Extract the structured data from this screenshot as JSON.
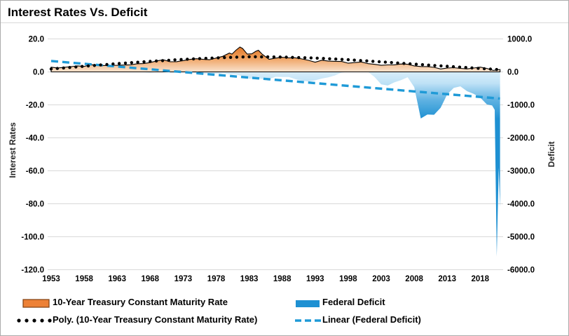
{
  "title": "Interest Rates Vs. Deficit",
  "left_axis": {
    "title": "Interest Rates",
    "ticks": [
      "20.0",
      "0.0",
      "-20.0",
      "-40.0",
      "-60.0",
      "-80.0",
      "-100.0",
      "-120.0"
    ],
    "tick_values": [
      20,
      0,
      -20,
      -40,
      -60,
      -80,
      -100,
      -120
    ]
  },
  "right_axis": {
    "title": "Deficit",
    "ticks": [
      "1000.0",
      "0.0",
      "-1000.0",
      "-2000.0",
      "-3000.0",
      "-4000.0",
      "-5000.0",
      "-6000.0"
    ],
    "tick_values": [
      1000,
      0,
      -1000,
      -2000,
      -3000,
      -4000,
      -5000,
      -6000
    ]
  },
  "legend": {
    "items": [
      {
        "label": "10-Year Treasury Constant Maturity Rate",
        "swatch": "area-orange"
      },
      {
        "label": "Federal Deficit",
        "swatch": "area-blue"
      },
      {
        "label": "Poly. (10-Year Treasury Constant Maturity Rate)",
        "swatch": "dotted-black"
      },
      {
        "label": "Linear (Federal Deficit)",
        "swatch": "dashed-blue"
      }
    ]
  },
  "colors": {
    "orange_top": "#dc6e1e",
    "orange_mid": "#ee9b55",
    "orange_pale": "#f9e3cf",
    "orange_solid": "#ed7d31",
    "orange_border": "#7f3f10",
    "blue_light": "#d7edfa",
    "blue_mid": "#5fb2e2",
    "blue_deep": "#1e90d2",
    "trend_blue": "#1f9ad7",
    "gridline": "#d9d9d9",
    "text": "#000000"
  },
  "chart_data": {
    "type": "combo-area-with-trendlines",
    "x_ticks": [
      1953,
      1958,
      1963,
      1968,
      1973,
      1978,
      1983,
      1988,
      1993,
      1998,
      2003,
      2008,
      2013,
      2018
    ],
    "x_range": [
      1953,
      2021
    ],
    "left_axis": {
      "label": "Interest Rates",
      "range": [
        -120,
        20
      ],
      "grid": true
    },
    "right_axis": {
      "label": "Deficit",
      "range": [
        -6000,
        1000
      ]
    },
    "legend_position": "bottom",
    "series": [
      {
        "name": "10-Year Treasury Constant Maturity Rate",
        "type": "area",
        "axis": "left",
        "color": "#ed7d31",
        "points": [
          [
            1953,
            2.85
          ],
          [
            1954,
            2.4
          ],
          [
            1955,
            2.82
          ],
          [
            1956,
            3.18
          ],
          [
            1957,
            3.65
          ],
          [
            1958,
            3.32
          ],
          [
            1959,
            4.33
          ],
          [
            1960,
            4.12
          ],
          [
            1961,
            3.88
          ],
          [
            1962,
            3.95
          ],
          [
            1963,
            4.0
          ],
          [
            1964,
            4.19
          ],
          [
            1965,
            4.28
          ],
          [
            1966,
            4.93
          ],
          [
            1967,
            5.07
          ],
          [
            1968,
            5.64
          ],
          [
            1969,
            6.67
          ],
          [
            1970,
            7.35
          ],
          [
            1971,
            6.16
          ],
          [
            1972,
            6.21
          ],
          [
            1973,
            6.85
          ],
          [
            1974,
            7.56
          ],
          [
            1975,
            7.99
          ],
          [
            1976,
            7.61
          ],
          [
            1977,
            7.42
          ],
          [
            1978,
            8.41
          ],
          [
            1979,
            9.43
          ],
          [
            1980,
            11.43
          ],
          [
            1980.4,
            10.8
          ],
          [
            1981,
            13.2
          ],
          [
            1981.6,
            15.1
          ],
          [
            1982,
            14.2
          ],
          [
            1982.7,
            10.8
          ],
          [
            1983.4,
            11.0
          ],
          [
            1984,
            12.5
          ],
          [
            1984.4,
            13.1
          ],
          [
            1985,
            10.62
          ],
          [
            1986,
            7.67
          ],
          [
            1987,
            8.39
          ],
          [
            1988,
            8.85
          ],
          [
            1989,
            8.49
          ],
          [
            1990,
            8.55
          ],
          [
            1991,
            7.86
          ],
          [
            1992,
            7.01
          ],
          [
            1993,
            5.87
          ],
          [
            1994,
            7.09
          ],
          [
            1995,
            6.57
          ],
          [
            1996,
            6.44
          ],
          [
            1997,
            6.35
          ],
          [
            1998,
            5.26
          ],
          [
            1999,
            5.65
          ],
          [
            2000,
            6.03
          ],
          [
            2001,
            5.02
          ],
          [
            2002,
            4.61
          ],
          [
            2003,
            4.01
          ],
          [
            2004,
            4.27
          ],
          [
            2005,
            4.29
          ],
          [
            2006,
            4.8
          ],
          [
            2007,
            4.63
          ],
          [
            2008,
            3.66
          ],
          [
            2009,
            3.26
          ],
          [
            2010,
            3.22
          ],
          [
            2011,
            2.78
          ],
          [
            2012,
            1.8
          ],
          [
            2013,
            2.35
          ],
          [
            2014,
            2.54
          ],
          [
            2015,
            2.14
          ],
          [
            2016,
            1.84
          ],
          [
            2017,
            2.33
          ],
          [
            2018,
            2.91
          ],
          [
            2019,
            2.14
          ],
          [
            2020,
            0.89
          ],
          [
            2021,
            1.45
          ]
        ]
      },
      {
        "name": "Federal Deficit",
        "type": "area",
        "axis": "right",
        "color": "#1e90d2",
        "clip_above_zero": true,
        "points": [
          [
            1953,
            -6
          ],
          [
            1954,
            -1
          ],
          [
            1955,
            -3
          ],
          [
            1956,
            4
          ],
          [
            1957,
            3
          ],
          [
            1958,
            -3
          ],
          [
            1959,
            -13
          ],
          [
            1960,
            0
          ],
          [
            1961,
            -3
          ],
          [
            1962,
            -7
          ],
          [
            1963,
            -5
          ],
          [
            1964,
            -6
          ],
          [
            1965,
            -1
          ],
          [
            1966,
            -4
          ],
          [
            1967,
            -9
          ],
          [
            1968,
            -25
          ],
          [
            1969,
            3
          ],
          [
            1970,
            -3
          ],
          [
            1971,
            -23
          ],
          [
            1972,
            -23
          ],
          [
            1973,
            -15
          ],
          [
            1974,
            -6
          ],
          [
            1975,
            -53
          ],
          [
            1976,
            -74
          ],
          [
            1977,
            -54
          ],
          [
            1978,
            -59
          ],
          [
            1979,
            -41
          ],
          [
            1980,
            -74
          ],
          [
            1981,
            -79
          ],
          [
            1982,
            -128
          ],
          [
            1983,
            -208
          ],
          [
            1984,
            -185
          ],
          [
            1985,
            -212
          ],
          [
            1986,
            -221
          ],
          [
            1987,
            -150
          ],
          [
            1988,
            -155
          ],
          [
            1989,
            -153
          ],
          [
            1990,
            -221
          ],
          [
            1991,
            -269
          ],
          [
            1992,
            -290
          ],
          [
            1993,
            -255
          ],
          [
            1994,
            -203
          ],
          [
            1995,
            -164
          ],
          [
            1996,
            -107
          ],
          [
            1997,
            -22
          ],
          [
            1998,
            69
          ],
          [
            1999,
            126
          ],
          [
            2000,
            236
          ],
          [
            2001,
            128
          ],
          [
            2002,
            -158
          ],
          [
            2003,
            -378
          ],
          [
            2004,
            -413
          ],
          [
            2005,
            -318
          ],
          [
            2006,
            -248
          ],
          [
            2007,
            -161
          ],
          [
            2008,
            -459
          ],
          [
            2009,
            -1413
          ],
          [
            2010,
            -1294
          ],
          [
            2011,
            -1300
          ],
          [
            2012,
            -1087
          ],
          [
            2013,
            -680
          ],
          [
            2014,
            -485
          ],
          [
            2015,
            -439
          ],
          [
            2016,
            -585
          ],
          [
            2017,
            -665
          ],
          [
            2018,
            -779
          ],
          [
            2019,
            -984
          ],
          [
            2019.8,
            -1020
          ],
          [
            2020.2,
            -1150
          ],
          [
            2020.5,
            -5600
          ],
          [
            2020.8,
            -2900
          ],
          [
            2021,
            -4100
          ]
        ]
      },
      {
        "name": "Poly. (10-Year Treasury Constant Maturity Rate)",
        "type": "dotted-trend",
        "axis": "left",
        "color": "#000000",
        "points": [
          [
            1953,
            1.8
          ],
          [
            1958,
            3.4
          ],
          [
            1963,
            5.0
          ],
          [
            1968,
            6.4
          ],
          [
            1973,
            7.6
          ],
          [
            1978,
            8.5
          ],
          [
            1983,
            9.2
          ],
          [
            1988,
            9.0
          ],
          [
            1993,
            8.4
          ],
          [
            1998,
            7.4
          ],
          [
            2003,
            6.1
          ],
          [
            2008,
            4.7
          ],
          [
            2013,
            3.4
          ],
          [
            2018,
            2.1
          ],
          [
            2021,
            1.3
          ]
        ]
      },
      {
        "name": "Linear (Federal Deficit)",
        "type": "dashed-trend",
        "axis": "right",
        "color": "#1f9ad7",
        "points": [
          [
            1953,
            330
          ],
          [
            2021,
            -810
          ]
        ]
      }
    ]
  }
}
